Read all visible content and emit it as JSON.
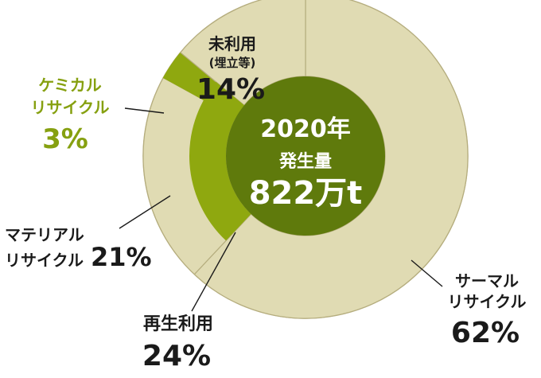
{
  "chart_data": {
    "type": "pie",
    "title": "2020年 発生量 822万t",
    "center": {
      "line1": "2020年",
      "line2": "発生量",
      "line3": "822万t"
    },
    "slices": [
      {
        "label_lines": [
          "サーマル",
          "リサイクル"
        ],
        "value_text": "62%",
        "value": 62,
        "color": "#e0dbb3"
      },
      {
        "label_lines": [
          "マテリアル",
          "リサイクル"
        ],
        "value_text": "21%",
        "value": 21,
        "color": "#e0dbb3"
      },
      {
        "label_lines": [
          "ケミカル",
          "リサイクル"
        ],
        "value_text": "3%",
        "value": 3,
        "color": "#8fa80f"
      },
      {
        "label_lines": [
          "未利用",
          "(埋立等)"
        ],
        "value_text": "14%",
        "value": 14,
        "color": "#e0dbb3"
      }
    ],
    "inner_group": {
      "label": "再生利用",
      "value_text": "24%",
      "value": 24,
      "color": "#8fa80f"
    },
    "colors": {
      "outer": "#e0dbb3",
      "green": "#8fa80f",
      "center": "#5f7a0c",
      "stroke": "#b5ad7e"
    }
  }
}
